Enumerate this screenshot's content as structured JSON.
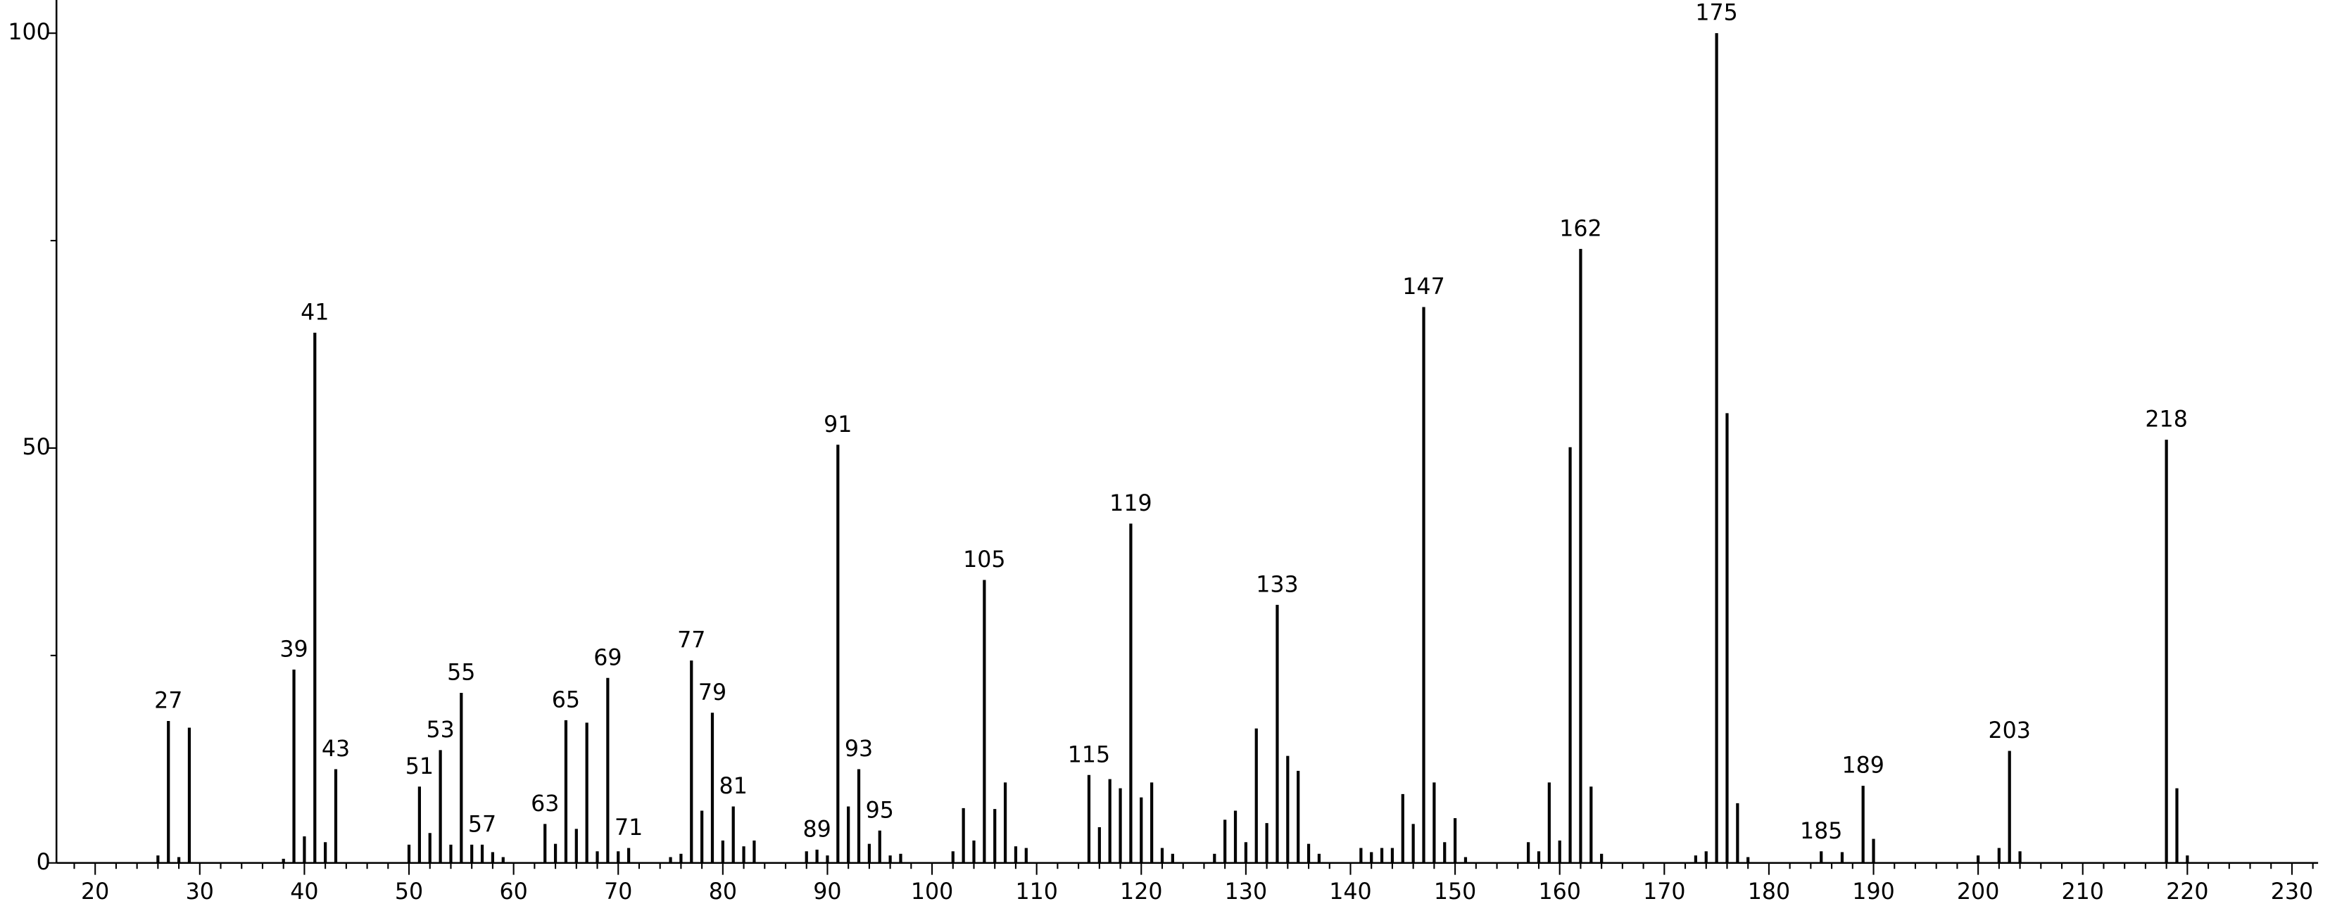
{
  "chart_data": {
    "type": "stem",
    "x": [
      26,
      27,
      28,
      29,
      38,
      39,
      40,
      41,
      42,
      43,
      50,
      51,
      52,
      53,
      54,
      55,
      56,
      57,
      58,
      59,
      63,
      64,
      65,
      66,
      67,
      68,
      69,
      70,
      71,
      75,
      76,
      77,
      78,
      79,
      80,
      81,
      82,
      83,
      88,
      89,
      90,
      91,
      92,
      93,
      94,
      95,
      96,
      97,
      102,
      103,
      104,
      105,
      106,
      107,
      108,
      109,
      115,
      116,
      117,
      118,
      119,
      120,
      121,
      122,
      123,
      127,
      128,
      129,
      130,
      131,
      132,
      133,
      134,
      135,
      136,
      137,
      141,
      142,
      143,
      144,
      145,
      146,
      147,
      148,
      149,
      150,
      151,
      157,
      158,
      159,
      160,
      161,
      162,
      163,
      164,
      173,
      174,
      175,
      176,
      177,
      178,
      185,
      187,
      189,
      190,
      200,
      202,
      203,
      204,
      218,
      219,
      220
    ],
    "values": [
      0.9,
      17.1,
      0.7,
      16.3,
      0.5,
      23.3,
      3.2,
      63.9,
      2.5,
      11.3,
      2.2,
      9.2,
      3.6,
      13.6,
      2.2,
      20.5,
      2.2,
      2.2,
      1.3,
      0.7,
      4.7,
      2.3,
      17.2,
      4.1,
      16.9,
      1.4,
      22.3,
      1.4,
      1.8,
      0.7,
      1.1,
      24.4,
      6.3,
      18.1,
      2.7,
      6.8,
      2.0,
      2.7,
      1.4,
      1.6,
      0.9,
      50.4,
      6.8,
      11.3,
      2.3,
      3.9,
      0.9,
      1.1,
      1.4,
      6.6,
      2.7,
      34.1,
      6.5,
      9.7,
      2.0,
      1.8,
      10.6,
      4.3,
      10.1,
      9.0,
      40.9,
      7.9,
      9.7,
      1.8,
      1.1,
      1.1,
      5.2,
      6.3,
      2.5,
      16.2,
      4.8,
      31.1,
      12.9,
      11.1,
      2.3,
      1.1,
      1.8,
      1.3,
      1.8,
      1.8,
      8.3,
      4.7,
      67.0,
      9.7,
      2.5,
      5.4,
      0.7,
      2.5,
      1.4,
      9.7,
      2.7,
      50.1,
      74.0,
      9.2,
      1.1,
      0.9,
      1.4,
      100,
      54.2,
      7.2,
      0.7,
      1.4,
      1.3,
      9.3,
      2.9,
      0.9,
      1.8,
      13.5,
      1.4,
      51.0,
      9.0,
      0.9
    ],
    "peak_labels": [
      null,
      "27",
      null,
      null,
      null,
      "39",
      null,
      "41",
      null,
      "43",
      null,
      "51",
      null,
      "53",
      null,
      "55",
      null,
      "57",
      null,
      null,
      "63",
      null,
      "65",
      null,
      null,
      null,
      "69",
      null,
      "71",
      null,
      null,
      "77",
      null,
      "79",
      null,
      "81",
      null,
      null,
      null,
      "89",
      null,
      "91",
      null,
      "93",
      null,
      "95",
      null,
      null,
      null,
      null,
      null,
      "105",
      null,
      null,
      null,
      null,
      "115",
      null,
      null,
      null,
      "119",
      null,
      null,
      null,
      null,
      null,
      null,
      null,
      null,
      null,
      null,
      "133",
      null,
      null,
      null,
      null,
      null,
      null,
      null,
      null,
      null,
      null,
      "147",
      null,
      null,
      null,
      null,
      null,
      null,
      null,
      null,
      null,
      "162",
      null,
      null,
      null,
      null,
      "175",
      null,
      null,
      null,
      "185",
      null,
      "189",
      null,
      null,
      null,
      "203",
      null,
      "218",
      null,
      null
    ],
    "color": "#000000",
    "xlim": [
      16.3,
      232.5
    ],
    "ylim": [
      0,
      104
    ],
    "xticks": [
      20,
      30,
      40,
      50,
      60,
      70,
      80,
      90,
      100,
      110,
      120,
      130,
      140,
      150,
      160,
      170,
      180,
      190,
      200,
      210,
      220,
      230
    ],
    "xminorticks": [
      18,
      22,
      24,
      26,
      28,
      32,
      34,
      36,
      38,
      42,
      44,
      46,
      48,
      52,
      54,
      56,
      58,
      62,
      64,
      66,
      68,
      72,
      74,
      76,
      78,
      82,
      84,
      86,
      88,
      92,
      94,
      96,
      98,
      102,
      104,
      106,
      108,
      112,
      114,
      116,
      118,
      122,
      124,
      126,
      128,
      132,
      134,
      136,
      138,
      142,
      144,
      146,
      148,
      152,
      154,
      156,
      158,
      162,
      164,
      166,
      168,
      172,
      174,
      176,
      178,
      182,
      184,
      186,
      188,
      192,
      194,
      196,
      198,
      202,
      204,
      206,
      208,
      212,
      214,
      216,
      218,
      222,
      224,
      226,
      228,
      232
    ],
    "yticks": [
      0,
      50,
      100
    ],
    "yminorticks": [
      25,
      75
    ],
    "grid": false
  }
}
